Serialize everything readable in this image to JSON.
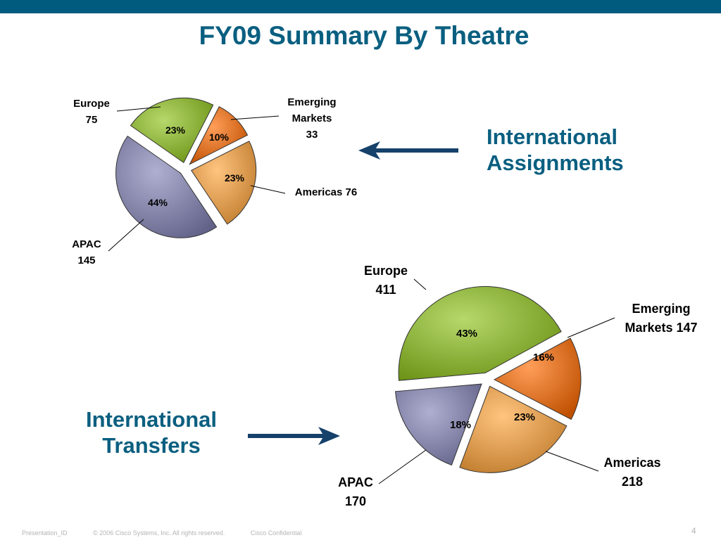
{
  "slide": {
    "title": "FY09 Summary By Theatre",
    "assignments_label": [
      "International",
      "Assignments"
    ],
    "transfers_label": [
      "International",
      "Transfers"
    ],
    "footer": {
      "presentation_id": "Presentation_ID",
      "copyright": "© 2006 Cisco Systems, Inc. All rights reserved.",
      "confidential": "Cisco Confidential"
    },
    "page_number": "4"
  },
  "colors": {
    "title": "#0a5f80",
    "bar": "#005b7f",
    "arrow": "#15416b",
    "europe": "#8fc31c",
    "emerging": "#ff6a00",
    "americas": "#ffa43a",
    "apac": "#8484b8"
  },
  "chart_data": [
    {
      "type": "pie",
      "name": "International Assignments",
      "slices": [
        {
          "key": "europe",
          "label": [
            "Europe",
            "75"
          ],
          "value": 75,
          "percent": "23%"
        },
        {
          "key": "emerging",
          "label": [
            "Emerging",
            "Markets",
            "33"
          ],
          "value": 33,
          "percent": "10%"
        },
        {
          "key": "americas",
          "label": [
            "Americas 76"
          ],
          "value": 76,
          "percent": "23%"
        },
        {
          "key": "apac",
          "label": [
            "APAC",
            "145"
          ],
          "value": 145,
          "percent": "44%"
        }
      ]
    },
    {
      "type": "pie",
      "name": "International Transfers",
      "slices": [
        {
          "key": "europe",
          "label": [
            "Europe",
            "411"
          ],
          "value": 411,
          "percent": "43%"
        },
        {
          "key": "emerging",
          "label": [
            "Emerging",
            "Markets 147"
          ],
          "value": 147,
          "percent": "16%"
        },
        {
          "key": "americas",
          "label": [
            "Americas",
            "218"
          ],
          "value": 218,
          "percent": "23%"
        },
        {
          "key": "apac",
          "label": [
            "APAC",
            "170"
          ],
          "value": 170,
          "percent": "18%"
        }
      ]
    }
  ]
}
